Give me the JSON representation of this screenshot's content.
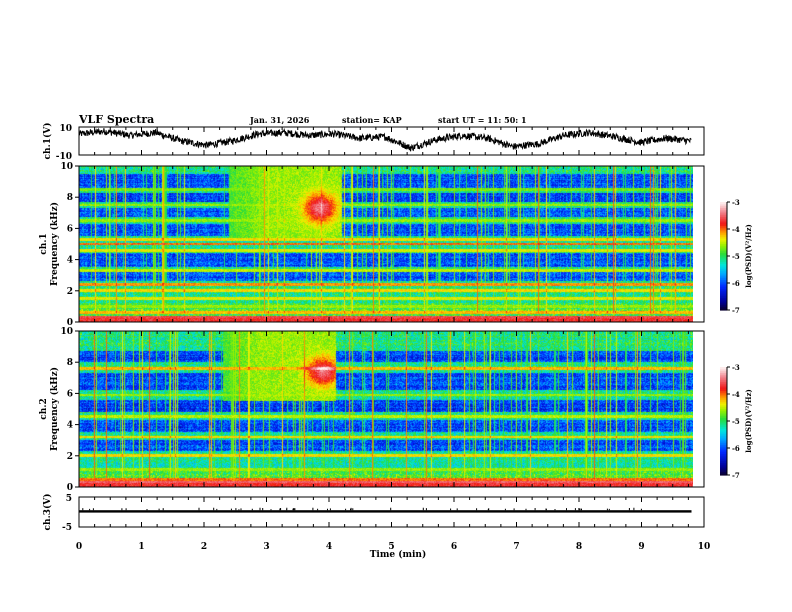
{
  "header": {
    "title": "VLF Spectra",
    "date": "Jan. 31, 2026",
    "station": "station= KAP",
    "start": "start  UT  =   11: 50: 1"
  },
  "chart_data": [
    {
      "type": "line",
      "name": "ch1-waveform",
      "ylabel": "ch.1(V)",
      "ylim": [
        -10,
        10
      ],
      "yticks": [
        "10",
        "-10"
      ],
      "xlim": [
        0,
        10
      ],
      "data_end_min": 9.8,
      "trace_color": "#000000",
      "description_values": [
        5,
        7,
        4,
        6,
        0,
        -3,
        0,
        5,
        6,
        4,
        5,
        2,
        3,
        -5,
        1,
        4,
        2,
        -4,
        -2,
        4,
        6,
        3,
        -1,
        2,
        0
      ]
    },
    {
      "type": "heatmap",
      "name": "ch1-spectrogram",
      "ylabel_top": "ch.1",
      "ylabel": "Frequency (kHz)",
      "ylim": [
        0,
        10
      ],
      "yticks": [
        "0",
        "2",
        "4",
        "6",
        "8",
        "10"
      ],
      "xlim": [
        0,
        10
      ],
      "colorbar": {
        "label": "log(PSD)(V²/Hz)",
        "range": [
          -7,
          -3
        ],
        "ticks": [
          "-3",
          "-4",
          "-5",
          "-6",
          "-7"
        ]
      },
      "bands_khz": [
        {
          "f": 0.3,
          "level": -3.6
        },
        {
          "f": 0.6,
          "level": -4.2
        },
        {
          "f": 1.0,
          "level": -4.6
        },
        {
          "f": 1.5,
          "level": -4.4
        },
        {
          "f": 2.0,
          "level": -4.3
        },
        {
          "f": 2.4,
          "level": -4.1
        },
        {
          "f": 3.3,
          "level": -4.5
        },
        {
          "f": 4.6,
          "level": -4.4
        },
        {
          "f": 5.0,
          "level": -4.0
        },
        {
          "f": 5.3,
          "level": -4.3
        },
        {
          "f": 6.5,
          "level": -4.6
        },
        {
          "f": 7.5,
          "level": -4.6
        },
        {
          "f": 8.5,
          "level": -4.7
        }
      ],
      "quiet_regions_khz": [
        [
          2.6,
          3.2
        ],
        [
          3.5,
          4.4
        ],
        [
          5.5,
          6.3
        ],
        [
          6.7,
          7.3
        ],
        [
          7.7,
          8.3
        ],
        [
          8.6,
          9.5
        ]
      ],
      "hiss_event": {
        "t_start": 2.4,
        "t_end": 4.2,
        "f_low": 5.4,
        "f_high": 10,
        "peak_t": 3.85,
        "peak_f": 7.3
      }
    },
    {
      "type": "heatmap",
      "name": "ch2-spectrogram",
      "ylabel_top": "ch.2",
      "ylabel": "Frequency (kHz)",
      "ylim": [
        0,
        10
      ],
      "yticks": [
        "0",
        "2",
        "4",
        "6",
        "8",
        "10"
      ],
      "xlim": [
        0,
        10
      ],
      "colorbar": {
        "label": "log(PSD)(V²/Hz)",
        "range": [
          -7,
          -3
        ],
        "ticks": [
          "-3",
          "-4",
          "-5",
          "-6",
          "-7"
        ]
      },
      "bands_khz": [
        {
          "f": 0.3,
          "level": -3.5
        },
        {
          "f": 0.5,
          "level": -4.0
        },
        {
          "f": 1.1,
          "level": -4.6
        },
        {
          "f": 2.0,
          "level": -4.3
        },
        {
          "f": 3.2,
          "level": -4.3
        },
        {
          "f": 4.5,
          "level": -4.5
        },
        {
          "f": 5.9,
          "level": -4.6
        },
        {
          "f": 7.6,
          "level": -4.2
        }
      ],
      "quiet_regions_khz": [
        [
          2.3,
          3.0
        ],
        [
          3.5,
          4.3
        ],
        [
          4.8,
          5.6
        ],
        [
          6.2,
          7.3
        ],
        [
          8.0,
          8.7
        ]
      ],
      "hiss_event": {
        "t_start": 2.3,
        "t_end": 4.1,
        "f_low": 5.5,
        "f_high": 10,
        "peak_t": 3.9,
        "peak_f": 7.4
      }
    },
    {
      "type": "line",
      "name": "ch3-waveform",
      "ylabel": "ch.3(V)",
      "ylim": [
        -5,
        5
      ],
      "yticks": [
        "5",
        "-5"
      ],
      "xlim": [
        0,
        10
      ],
      "data_end_min": 9.8,
      "band_range_v": [
        -0.2,
        0.6
      ],
      "xlabel": "Time  (min)",
      "xticks": [
        "0",
        "1",
        "2",
        "3",
        "4",
        "5",
        "6",
        "7",
        "8",
        "9",
        "10"
      ]
    }
  ]
}
